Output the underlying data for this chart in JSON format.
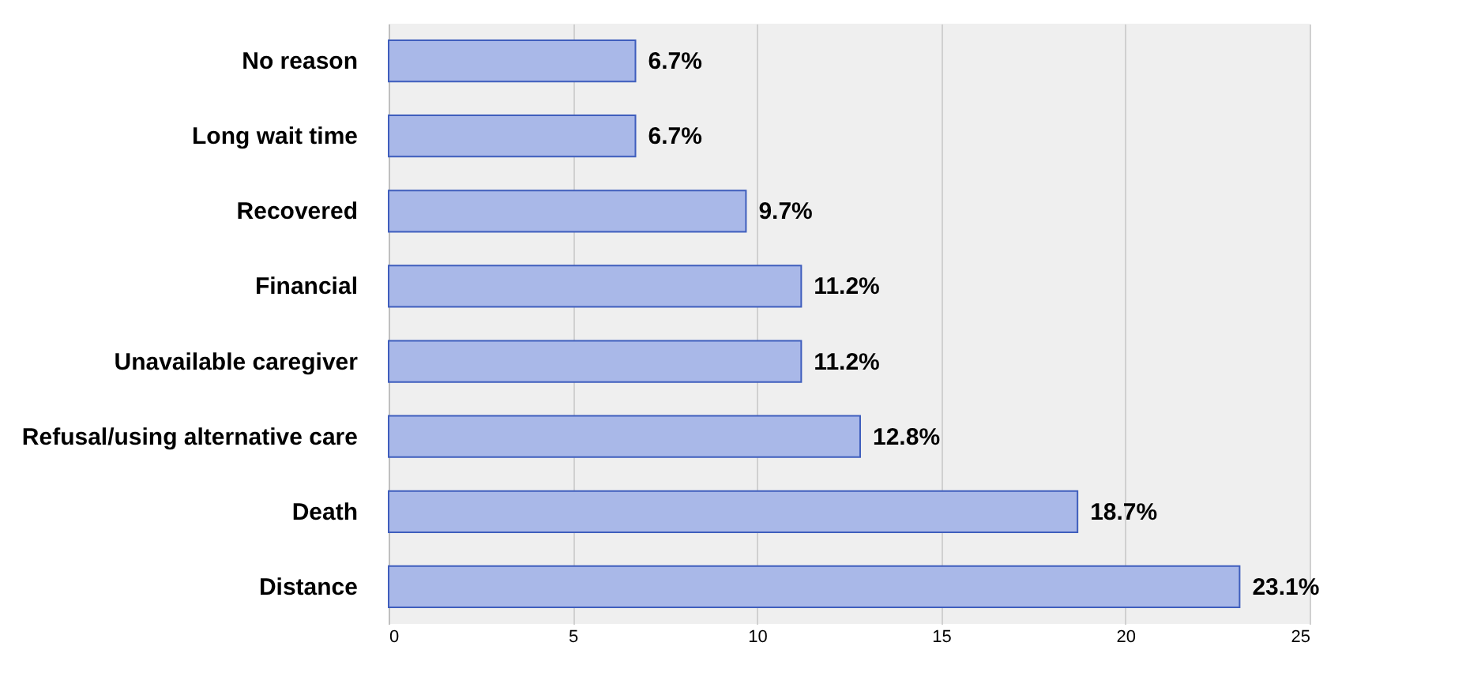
{
  "chart_data": {
    "type": "bar",
    "orientation": "horizontal",
    "categories": [
      "No reason",
      "Long wait time",
      "Recovered",
      "Financial",
      "Unavailable caregiver",
      "Refusal/using alternative care",
      "Death",
      "Distance"
    ],
    "values": [
      6.7,
      6.7,
      9.7,
      11.2,
      11.2,
      12.8,
      18.7,
      23.1
    ],
    "value_labels": [
      "6.7%",
      "6.7%",
      "9.7%",
      "11.2%",
      "11.2%",
      "12.8%",
      "18.7%",
      "23.1%"
    ],
    "color": "#a9b8e8",
    "xlim": [
      0,
      25
    ],
    "xticks": [
      0,
      5,
      10,
      15,
      20,
      25
    ],
    "grid": "x"
  }
}
